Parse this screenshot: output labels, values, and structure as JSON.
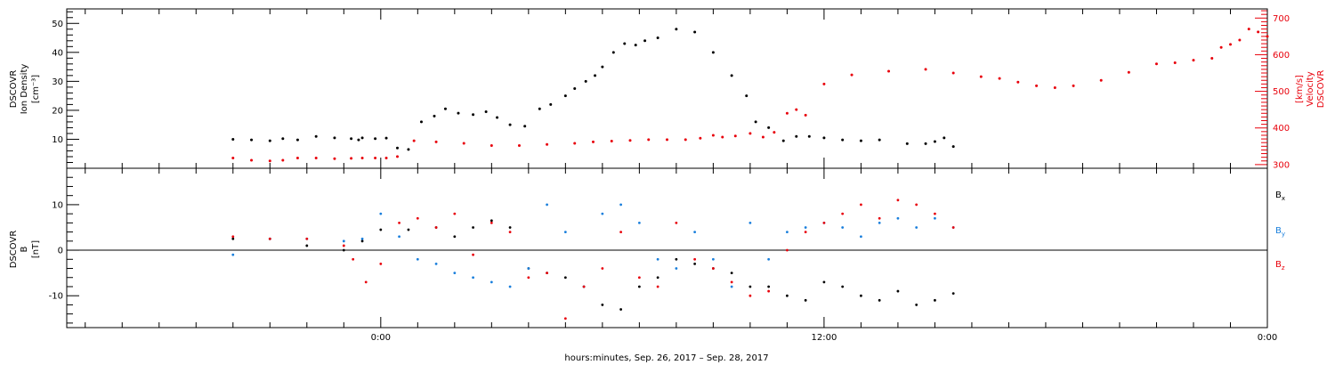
{
  "chart_data": [
    {
      "type": "scatter",
      "panel": "ion-density-velocity",
      "left_axis": {
        "label_lines": [
          "DSCOVR",
          "Ion Density",
          "[cm⁻³]"
        ],
        "ylim": [
          0,
          55
        ],
        "major_ticks": [
          10,
          20,
          30,
          40,
          50
        ],
        "tick_labels": [
          "10",
          "20",
          "30",
          "40",
          "50"
        ],
        "color": "#000000"
      },
      "right_axis": {
        "label_lines": [
          "DSCOVR",
          "Velocity",
          "[km/s]"
        ],
        "ylim": [
          290,
          725
        ],
        "major_ticks": [
          300,
          400,
          500,
          600,
          700
        ],
        "tick_labels": [
          "300",
          "400",
          "500",
          "600",
          "700"
        ],
        "color": "#e8000b"
      },
      "series": [
        {
          "role": "density",
          "axis": "left",
          "color": "#000000",
          "x": [
            -8,
            -7,
            -6,
            -5.3,
            -4.5,
            -3.5,
            -2.5,
            -1.6,
            -1.2,
            -1.0,
            -0.3,
            0.3,
            0.9,
            1.5,
            2.2,
            2.9,
            3.5,
            4.2,
            5.0,
            5.7,
            6.3,
            7.0,
            7.8,
            8.6,
            9.2,
            10.0,
            10.5,
            11.1,
            11.6,
            12.0,
            12.6,
            13.2,
            13.8,
            14.3,
            15.0,
            16.0,
            17.0,
            18.0,
            19.0,
            19.8,
            20.3,
            21.0,
            21.8,
            22.5,
            23.2,
            24.0,
            25.0,
            26.0,
            27.0,
            28.5,
            29.5,
            30.0,
            30.5,
            31.0
          ],
          "y": [
            10,
            9.8,
            9.5,
            10.2,
            9.8,
            11,
            10.5,
            10.2,
            9.8,
            10.5,
            10.2,
            10.4,
            7,
            6.5,
            16,
            18,
            20.5,
            19,
            18.5,
            19.5,
            17.5,
            15,
            14.5,
            20.5,
            22,
            25,
            27.5,
            30,
            32,
            35,
            40,
            43,
            42.5,
            44,
            45,
            48,
            47,
            40,
            32,
            25,
            16,
            14,
            9.5,
            11,
            11,
            10.5,
            9.8,
            9.5,
            9.8,
            8.5,
            8.5,
            9.2,
            10.5,
            7.5
          ]
        },
        {
          "role": "velocity",
          "axis": "right",
          "color": "#e8000b",
          "x": [
            -8,
            -7,
            -6,
            -5.3,
            -4.5,
            -3.5,
            -2.5,
            -1.6,
            -1.0,
            -0.3,
            0.3,
            0.9,
            1.8,
            3.0,
            4.5,
            6.0,
            7.5,
            9.0,
            10.5,
            11.5,
            12.5,
            13.5,
            14.5,
            15.5,
            16.5,
            17.3,
            18.0,
            18.5,
            19.2,
            20.0,
            20.7,
            21.3,
            22.0,
            22.5,
            23.0,
            24.0,
            25.5,
            27.5,
            29.5,
            31.0,
            32.5,
            33.5,
            34.5,
            35.5,
            36.5,
            37.5,
            39.0,
            40.5,
            42.0,
            43.0,
            44.0,
            45.0,
            45.5,
            46.0,
            46.5,
            47.0,
            47.5,
            48.0
          ],
          "y": [
            318,
            312,
            310,
            312,
            318,
            318,
            316,
            317,
            318,
            318,
            318,
            322,
            365,
            362,
            358,
            352,
            352,
            355,
            358,
            362,
            364,
            366,
            368,
            368,
            368,
            372,
            380,
            375,
            378,
            385,
            375,
            388,
            440,
            450,
            435,
            520,
            545,
            555,
            560,
            550,
            540,
            535,
            525,
            515,
            510,
            515,
            530,
            552,
            575,
            578,
            585,
            590,
            620,
            628,
            640,
            670,
            662,
            650
          ]
        }
      ]
    },
    {
      "type": "scatter",
      "panel": "magnetic-field",
      "left_axis": {
        "label_lines": [
          "DSCOVR",
          "B",
          "[nT]"
        ],
        "ylim": [
          -17,
          18
        ],
        "major_ticks": [
          -10,
          0,
          10
        ],
        "tick_labels": [
          "-10",
          "0",
          "10"
        ],
        "color": "#000000"
      },
      "zero_line": true,
      "series": [
        {
          "name": "B",
          "subscript": "x",
          "color": "#000000",
          "x": [
            -8,
            -6,
            -4,
            -2,
            -1,
            0,
            1.5,
            3,
            4,
            5,
            6,
            7,
            8,
            9,
            10,
            11,
            12,
            13,
            14,
            15,
            16,
            17,
            18,
            19,
            20,
            21,
            22,
            23,
            24,
            25,
            26,
            27,
            28,
            29,
            30,
            31
          ],
          "y": [
            2.5,
            2.5,
            1,
            0,
            2,
            4.5,
            4.5,
            5,
            3,
            5,
            6.5,
            5,
            -4,
            -5,
            -6,
            -8,
            -12,
            -13,
            -8,
            -6,
            -2,
            -3,
            -4,
            -5,
            -8,
            -8,
            -10,
            -11,
            -7,
            -8,
            -10,
            -11,
            -9,
            -12,
            -11,
            -9.5
          ]
        },
        {
          "name": "B",
          "subscript": "y",
          "color": "#1a7fdc",
          "x": [
            -8,
            -6,
            -4,
            -2,
            -1,
            0,
            1,
            2,
            3,
            4,
            5,
            6,
            7,
            8,
            9,
            10,
            11,
            12,
            13,
            14,
            15,
            16,
            17,
            18,
            19,
            20,
            21,
            22,
            23,
            24,
            25,
            26,
            27,
            28,
            29,
            30,
            31
          ],
          "y": [
            -1,
            2.5,
            2.5,
            2,
            2.5,
            8,
            3,
            -2,
            -3,
            -5,
            -6,
            -7,
            -8,
            -4,
            10,
            4,
            -8,
            8,
            10,
            6,
            -2,
            -4,
            4,
            -2,
            -8,
            6,
            -2,
            4,
            5,
            6,
            5,
            3,
            6,
            7,
            5,
            7,
            5
          ]
        },
        {
          "name": "B",
          "subscript": "z",
          "color": "#e8000b",
          "x": [
            -8,
            -6,
            -4,
            -2,
            -1.5,
            -0.8,
            0,
            1,
            2,
            3,
            4,
            5,
            6,
            7,
            8,
            9,
            10,
            11,
            12,
            13,
            14,
            15,
            16,
            17,
            18,
            19,
            20,
            21,
            22,
            23,
            24,
            25,
            26,
            27,
            28,
            29,
            30,
            31
          ],
          "y": [
            3,
            2.5,
            2.5,
            1,
            -2,
            -7,
            -3,
            6,
            7,
            5,
            8,
            -1,
            6,
            4,
            -6,
            -5,
            -15,
            -8,
            -4,
            4,
            -6,
            -8,
            6,
            -2,
            -4,
            -7,
            -10,
            -9,
            0,
            4,
            6,
            8,
            10,
            7,
            11,
            10,
            8,
            5
          ]
        }
      ]
    }
  ],
  "x_axis": {
    "label": "hours:minutes, Sep. 26, 2017 – Sep. 28, 2017",
    "xlim": [
      -17,
      48
    ],
    "major_ticks": [
      0,
      24,
      48
    ],
    "tick_labels": [
      "0:00",
      "12:00",
      "0:00"
    ]
  }
}
